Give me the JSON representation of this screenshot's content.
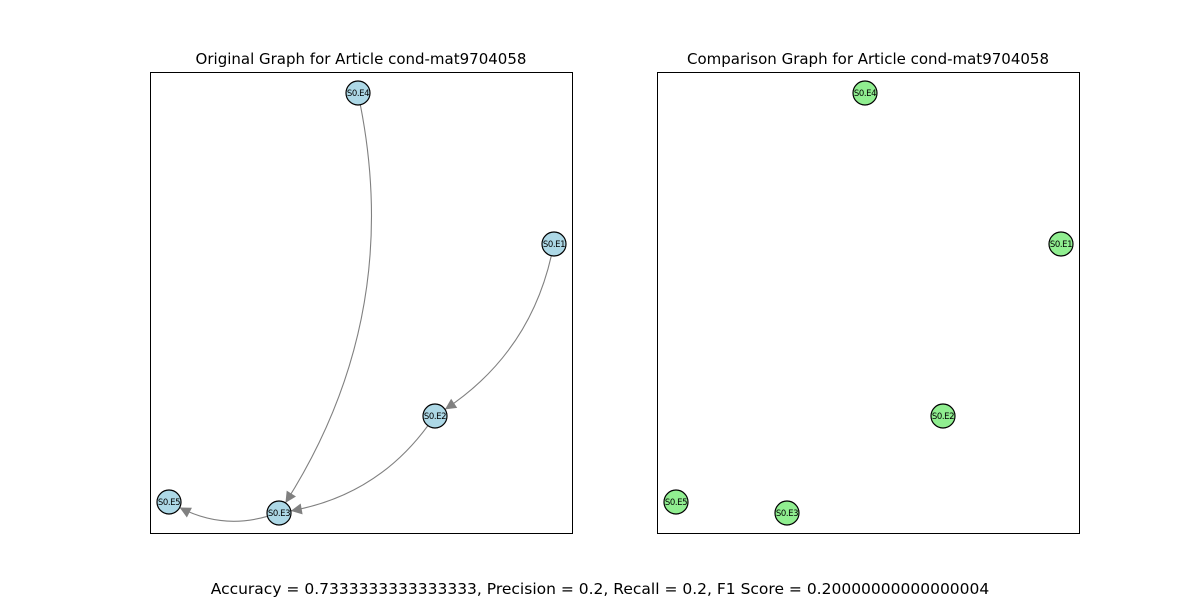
{
  "figure": {
    "metrics": "Accuracy = 0.7333333333333333, Precision = 0.2, Recall = 0.2, F1 Score = 0.20000000000000004"
  },
  "colors": {
    "original_node_fill": "#add8e6",
    "comparison_node_fill": "#90ee90",
    "node_stroke": "#000000",
    "edge_color": "#808080",
    "frame": "#000000"
  },
  "panels": [
    {
      "id": "original",
      "title": "Original Graph for Article cond-mat9704058",
      "nodes": [
        "S0.E4",
        "S0.E1",
        "S0.E2",
        "S0.E5",
        "S0.E3"
      ],
      "edges": [
        {
          "source": "S0.E4",
          "target": "S0.E3"
        },
        {
          "source": "S0.E1",
          "target": "S0.E2"
        },
        {
          "source": "S0.E2",
          "target": "S0.E3"
        },
        {
          "source": "S0.E3",
          "target": "S0.E5"
        }
      ]
    },
    {
      "id": "comparison",
      "title": "Comparison Graph for Article cond-mat9704058",
      "nodes": [
        "S0.E4",
        "S0.E1",
        "S0.E2",
        "S0.E5",
        "S0.E3"
      ],
      "edges": []
    }
  ]
}
